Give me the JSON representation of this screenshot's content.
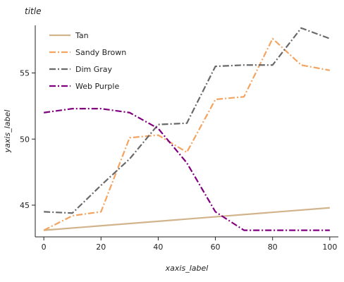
{
  "chart_data": {
    "type": "line",
    "title": "title",
    "xlabel": "xaxis_label",
    "ylabel": "yaxis_label",
    "xlim": [
      -3,
      103
    ],
    "ylim": [
      42.6,
      58.6
    ],
    "xticks": [
      0,
      20,
      40,
      60,
      80,
      100
    ],
    "yticks": [
      45,
      50,
      55
    ],
    "grid": false,
    "legend_position": "top-left",
    "series": [
      {
        "name": "Tan",
        "color": "#D2B48C",
        "dash": "solid",
        "x": [
          0,
          100
        ],
        "y": [
          43.1,
          44.8
        ]
      },
      {
        "name": "Sandy Brown",
        "color": "#F4A460",
        "dash": "dashdot",
        "x": [
          0,
          10,
          20,
          30,
          40,
          50,
          60,
          70,
          80,
          90,
          100
        ],
        "y": [
          43.1,
          44.2,
          44.5,
          50.1,
          50.3,
          49.0,
          53.0,
          53.2,
          57.6,
          55.6,
          55.2
        ]
      },
      {
        "name": "Dim Gray",
        "color": "#696969",
        "dash": "dashdot",
        "x": [
          0,
          10,
          20,
          30,
          40,
          50,
          60,
          70,
          80,
          90,
          100
        ],
        "y": [
          44.5,
          44.4,
          46.5,
          48.5,
          51.1,
          51.2,
          55.5,
          55.6,
          55.6,
          58.4,
          57.6
        ]
      },
      {
        "name": "Web Purple",
        "color": "#800080",
        "dash": "dashdot",
        "x": [
          0,
          10,
          20,
          30,
          40,
          50,
          60,
          70,
          80,
          90,
          100
        ],
        "y": [
          52.0,
          52.3,
          52.3,
          52.0,
          50.8,
          48.2,
          44.5,
          43.1,
          43.1,
          43.1,
          43.1
        ]
      }
    ]
  }
}
